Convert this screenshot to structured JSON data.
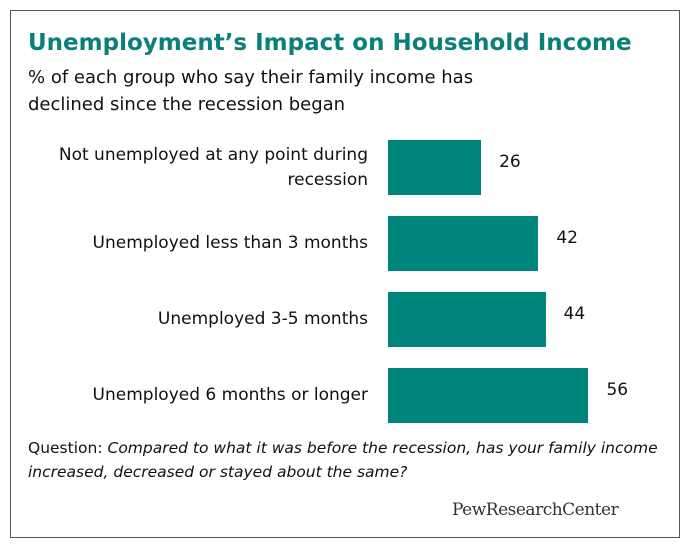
{
  "chart_data": {
    "type": "bar",
    "orientation": "horizontal",
    "title": "Unemployment’s Impact on Household Income",
    "subtitle": "% of each group who say their family income has declined since the recession began",
    "categories": [
      "Not unemployed at any point during recession",
      "Unemployed less than 3 months",
      "Unemployed 3-5 months",
      "Unemployed 6 months or longer"
    ],
    "values": [
      26,
      42,
      44,
      56
    ],
    "color": "#00857d",
    "note_label": "Question:",
    "note": "Compared to what it was before the recession, has your family income increased, decreased or stayed about the same?",
    "source": "PewResearchCenter"
  }
}
